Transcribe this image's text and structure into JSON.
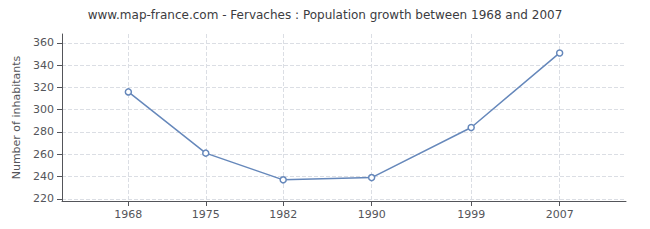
{
  "chart_data": {
    "type": "line",
    "title": "www.map-france.com - Fervaches : Population growth between 1968 and 2007",
    "ylabel": "Number of inhabitants",
    "x": [
      1968,
      1975,
      1982,
      1990,
      1999,
      2007
    ],
    "values": [
      316,
      261,
      237,
      239,
      284,
      351
    ],
    "color": "#6688bb",
    "marker": "circle",
    "xlim": [
      1962,
      2013
    ],
    "xticks": [
      1968,
      1975,
      1982,
      1990,
      1999,
      2007
    ],
    "ylim": [
      218,
      368
    ],
    "yticks": [
      220,
      240,
      260,
      280,
      300,
      320,
      340,
      360
    ],
    "grid": true
  }
}
